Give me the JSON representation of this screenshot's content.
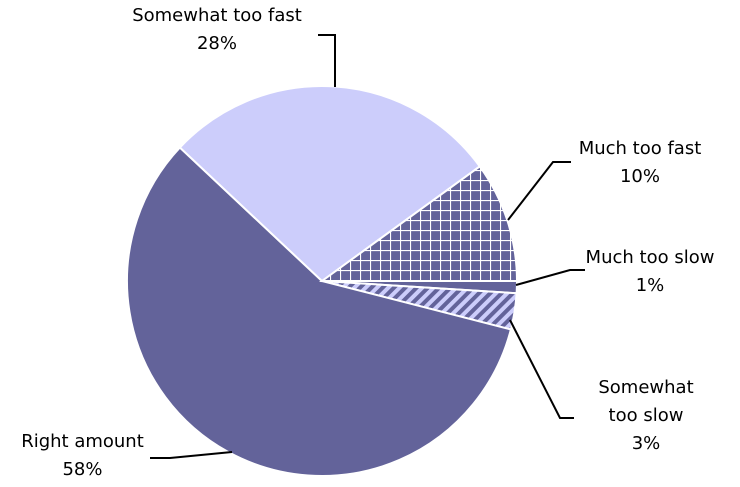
{
  "chart_data": {
    "type": "pie",
    "start_angle_deg": 0,
    "direction": "clockwise",
    "slices": [
      {
        "label": "Much too slow",
        "value": 1,
        "value_label": "1%",
        "color": "#63639a",
        "pattern": "solid"
      },
      {
        "label": "Somewhat too slow",
        "value": 3,
        "value_label": "3%",
        "color": "#63639a",
        "pattern": "diagonal-stripes",
        "pattern_bg": "#cccdfb"
      },
      {
        "label": "Right amount",
        "value": 58,
        "value_label": "58%",
        "color": "#63639a",
        "pattern": "solid"
      },
      {
        "label": "Somewhat too fast",
        "value": 28,
        "value_label": "28%",
        "color": "#cccdfb",
        "pattern": "solid"
      },
      {
        "label": "Much too fast",
        "value": 10,
        "value_label": "10%",
        "color": "#63639a",
        "pattern": "grid",
        "pattern_line": "#ffffff"
      }
    ]
  }
}
